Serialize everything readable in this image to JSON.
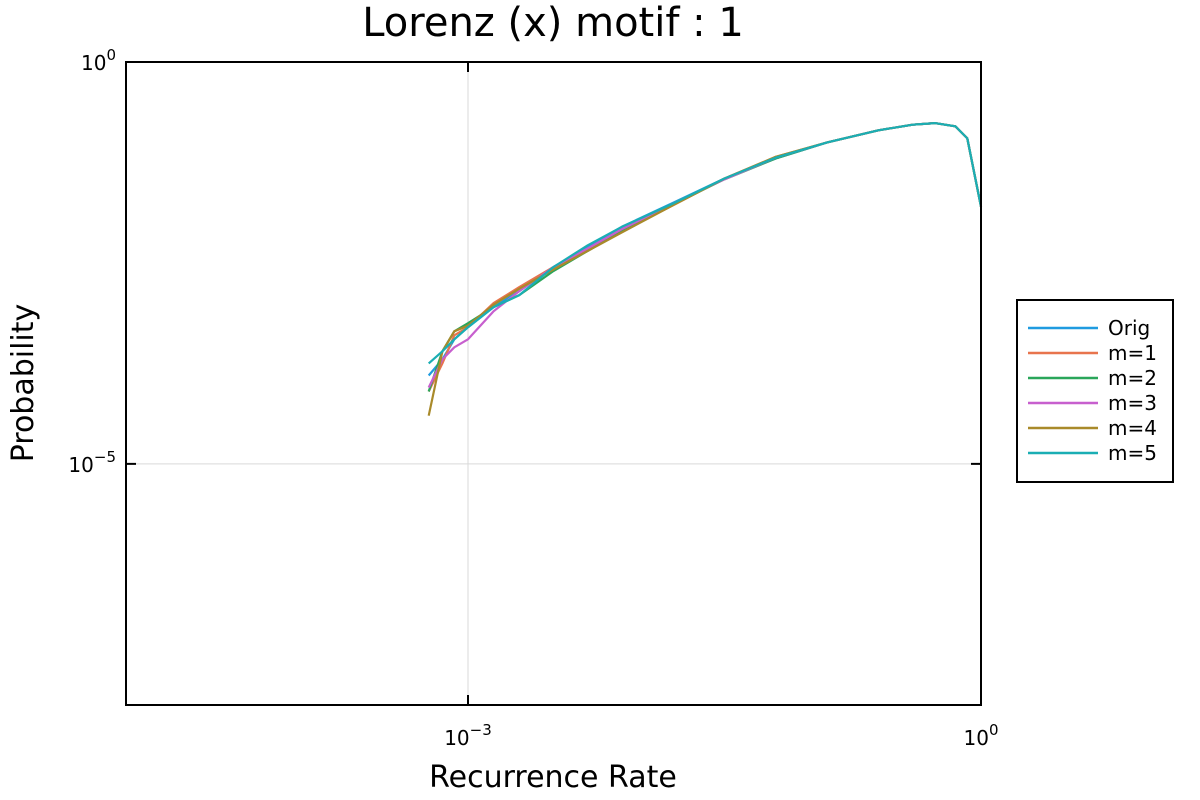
{
  "chart_data": {
    "type": "line",
    "title": "Lorenz (x) motif : 1",
    "xlabel": "Recurrence Rate",
    "ylabel": "Probability",
    "xscale": "log",
    "yscale": "log",
    "xlim_log10": [
      -5,
      0
    ],
    "ylim_log10": [
      -8,
      0
    ],
    "grid": true,
    "legend_position": "outside-right",
    "x_ticks": [
      {
        "base": "10",
        "exp": "−3",
        "value_log10": -3
      },
      {
        "base": "10",
        "exp": "0",
        "value_log10": 0
      }
    ],
    "y_ticks": [
      {
        "base": "10",
        "exp": "0",
        "value_log10": 0
      },
      {
        "base": "10",
        "exp": "−5",
        "value_log10": -5
      }
    ],
    "series": [
      {
        "name": "Orig",
        "color": "#1f9be0",
        "x_log10": [
          -3.23,
          -3.15,
          -3.08,
          -3.0,
          -2.85,
          -2.7,
          -2.5,
          -2.3,
          -2.1,
          -1.8,
          -1.5,
          -1.2,
          -0.9,
          -0.6,
          -0.4,
          -0.27,
          -0.15,
          -0.08,
          0.0
        ],
        "y_log10": [
          -3.9,
          -3.7,
          -3.45,
          -3.3,
          -3.05,
          -2.85,
          -2.55,
          -2.3,
          -2.05,
          -1.75,
          -1.45,
          -1.2,
          -1.0,
          -0.85,
          -0.78,
          -0.76,
          -0.8,
          -0.95,
          -1.8
        ]
      },
      {
        "name": "m=1",
        "color": "#e8744d",
        "x_log10": [
          -3.23,
          -3.15,
          -3.08,
          -3.0,
          -2.85,
          -2.7,
          -2.5,
          -2.3,
          -2.1,
          -1.8,
          -1.5,
          -1.2,
          -0.9,
          -0.6,
          -0.4,
          -0.27,
          -0.15,
          -0.08,
          0.0
        ],
        "y_log10": [
          -4.1,
          -3.75,
          -3.4,
          -3.3,
          -3.0,
          -2.8,
          -2.55,
          -2.35,
          -2.1,
          -1.78,
          -1.45,
          -1.18,
          -1.0,
          -0.85,
          -0.78,
          -0.76,
          -0.8,
          -0.95,
          -1.8
        ]
      },
      {
        "name": "m=2",
        "color": "#2aa65a",
        "x_log10": [
          -3.23,
          -3.15,
          -3.08,
          -3.0,
          -2.85,
          -2.7,
          -2.5,
          -2.3,
          -2.1,
          -1.8,
          -1.5,
          -1.2,
          -0.9,
          -0.6,
          -0.4,
          -0.27,
          -0.15,
          -0.08,
          0.0
        ],
        "y_log10": [
          -4.1,
          -3.6,
          -3.35,
          -3.25,
          -3.05,
          -2.9,
          -2.6,
          -2.35,
          -2.1,
          -1.77,
          -1.46,
          -1.2,
          -1.0,
          -0.85,
          -0.78,
          -0.76,
          -0.8,
          -0.95,
          -1.8
        ]
      },
      {
        "name": "m=3",
        "color": "#c75fce",
        "x_log10": [
          -3.23,
          -3.15,
          -3.08,
          -3.0,
          -2.85,
          -2.7,
          -2.5,
          -2.3,
          -2.1,
          -1.8,
          -1.5,
          -1.2,
          -0.9,
          -0.6,
          -0.4,
          -0.27,
          -0.15,
          -0.08,
          0.0
        ],
        "y_log10": [
          -4.05,
          -3.7,
          -3.55,
          -3.45,
          -3.1,
          -2.85,
          -2.55,
          -2.32,
          -2.08,
          -1.76,
          -1.46,
          -1.19,
          -1.0,
          -0.85,
          -0.78,
          -0.76,
          -0.8,
          -0.95,
          -1.8
        ]
      },
      {
        "name": "m=4",
        "color": "#a98a2a",
        "x_log10": [
          -3.23,
          -3.15,
          -3.08,
          -3.0,
          -2.85,
          -2.7,
          -2.5,
          -2.3,
          -2.1,
          -1.8,
          -1.5,
          -1.2,
          -0.9,
          -0.6,
          -0.4,
          -0.27,
          -0.15,
          -0.08,
          0.0
        ],
        "y_log10": [
          -4.4,
          -3.6,
          -3.35,
          -3.28,
          -3.02,
          -2.82,
          -2.58,
          -2.35,
          -2.12,
          -1.78,
          -1.45,
          -1.18,
          -1.0,
          -0.85,
          -0.78,
          -0.76,
          -0.8,
          -0.95,
          -1.8
        ]
      },
      {
        "name": "m=5",
        "color": "#1aaeb4",
        "x_log10": [
          -3.23,
          -3.15,
          -3.08,
          -3.0,
          -2.85,
          -2.7,
          -2.5,
          -2.3,
          -2.1,
          -1.8,
          -1.5,
          -1.2,
          -0.9,
          -0.6,
          -0.4,
          -0.27,
          -0.15,
          -0.08,
          0.0
        ],
        "y_log10": [
          -3.75,
          -3.6,
          -3.45,
          -3.3,
          -3.05,
          -2.9,
          -2.55,
          -2.28,
          -2.05,
          -1.76,
          -1.45,
          -1.19,
          -1.0,
          -0.85,
          -0.78,
          -0.76,
          -0.8,
          -0.95,
          -1.8
        ]
      }
    ]
  }
}
